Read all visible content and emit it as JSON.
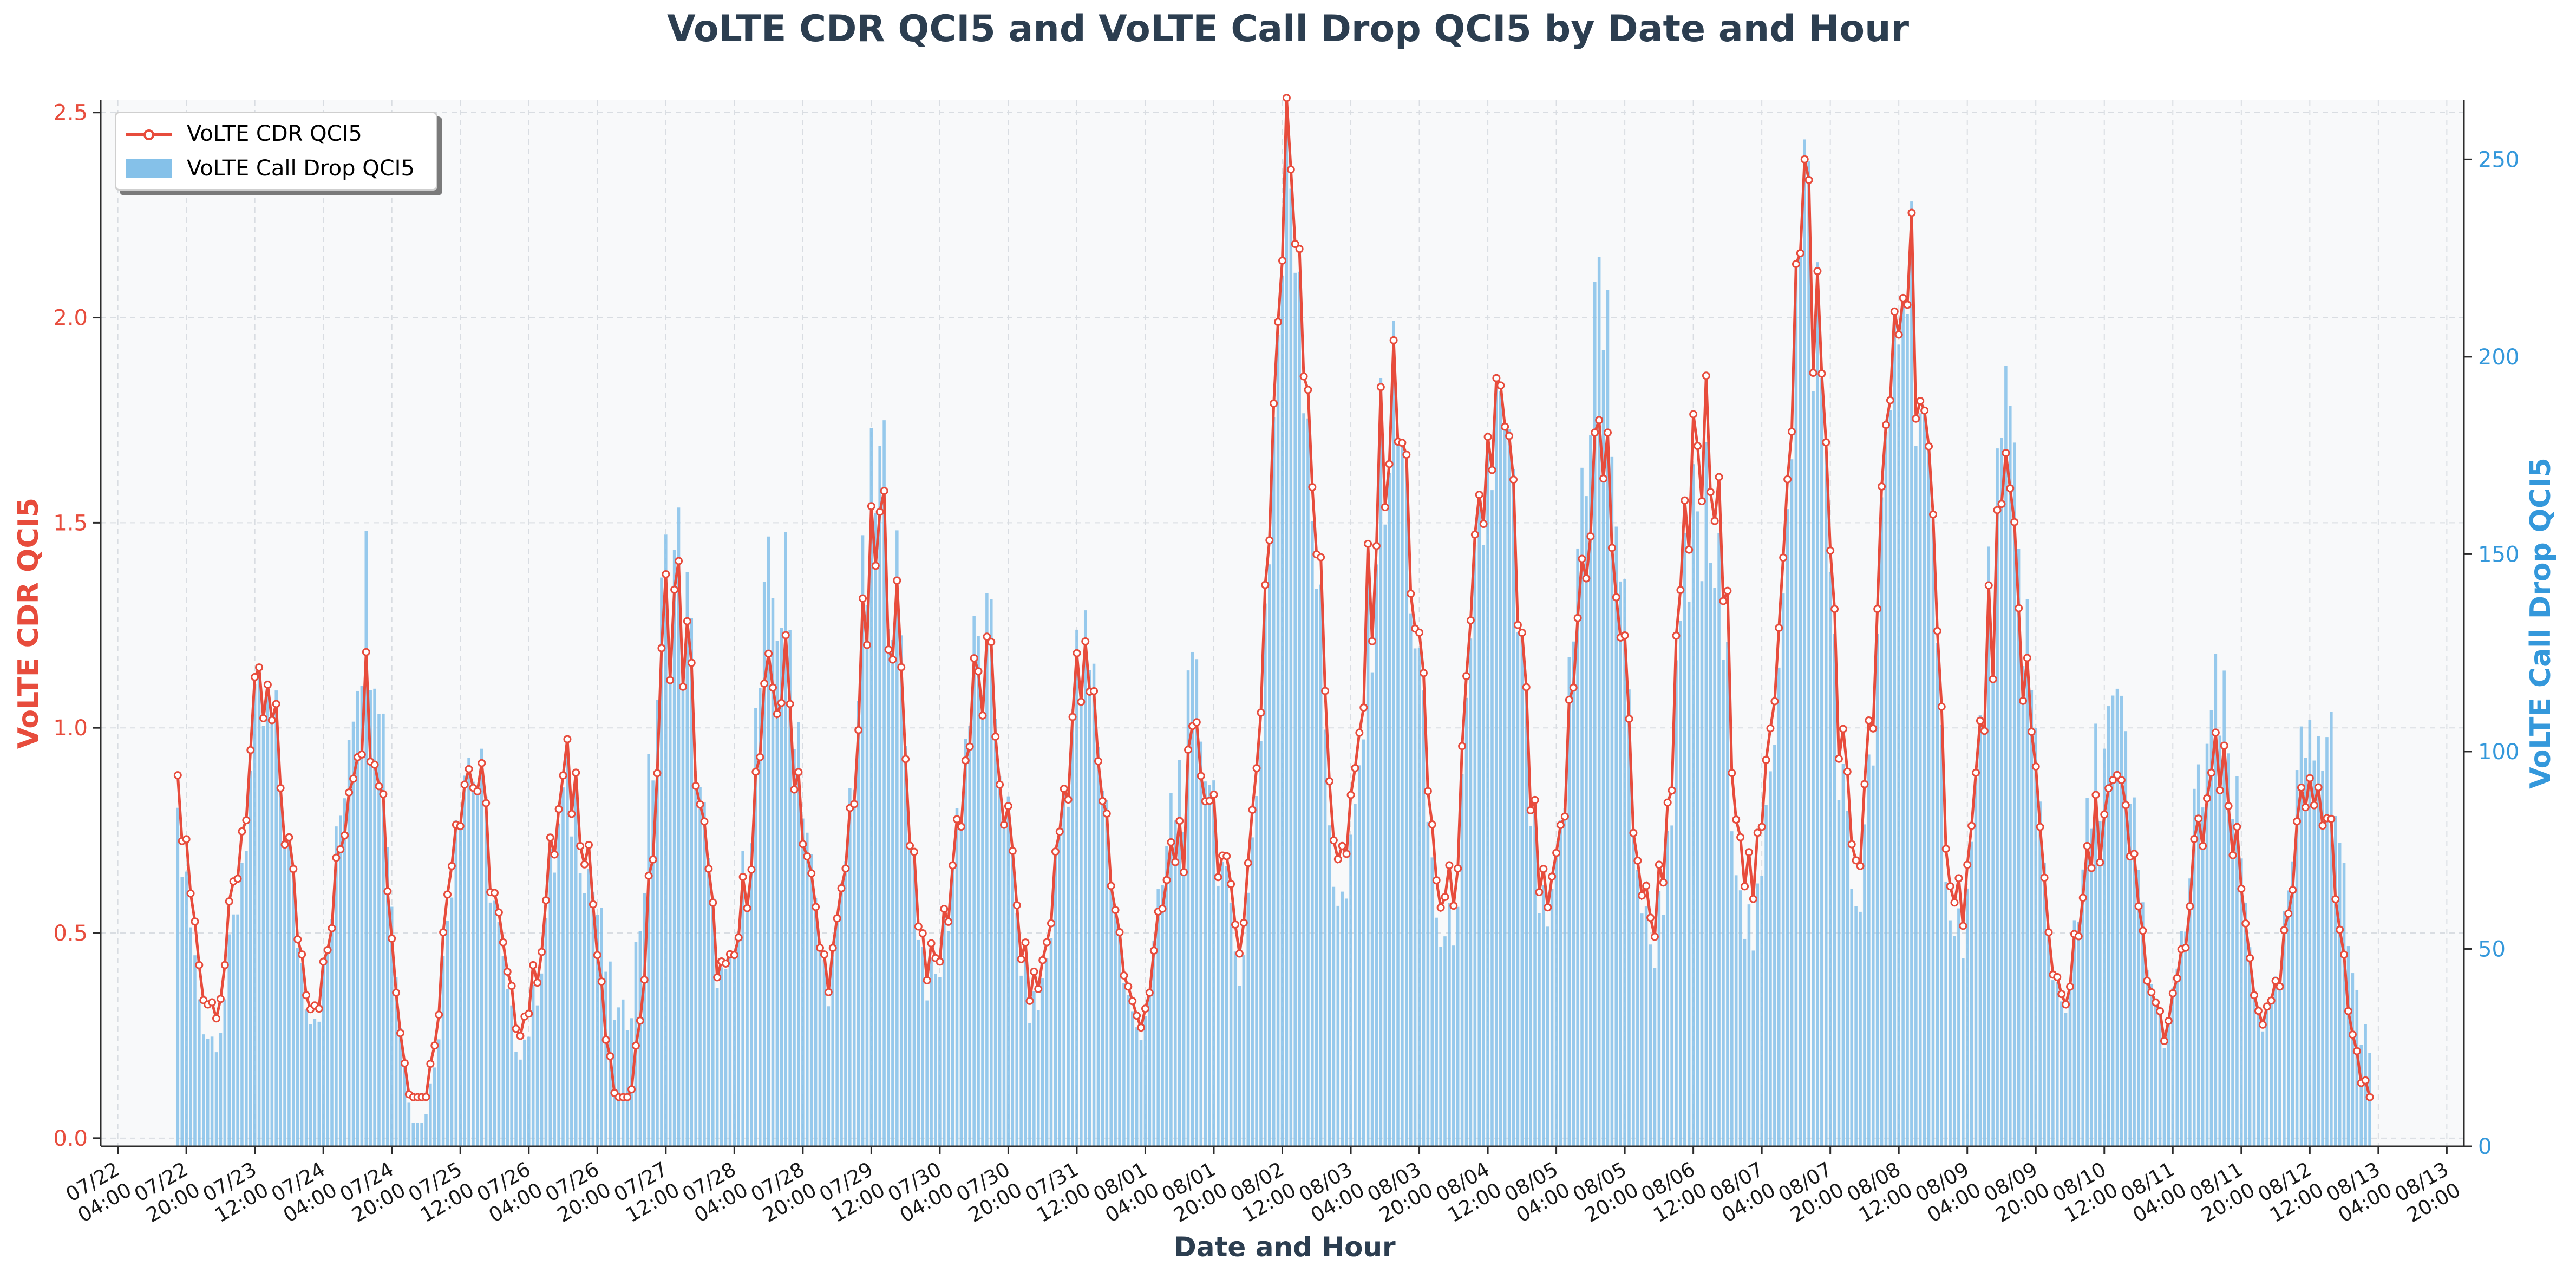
{
  "chart_data": {
    "type": "bar+line",
    "title": "VoLTE CDR QCI5 and VoLTE Call Drop QCI5 by Date and Hour",
    "xlabel": "Date and Hour",
    "y_left_label": "VoLTE CDR QCI5",
    "y_right_label": "VoLTE Call Drop QCI5",
    "y_left_ticks": [
      "0.0",
      "0.5",
      "1.0",
      "1.5",
      "2.0",
      "2.5"
    ],
    "y_right_ticks": [
      "0",
      "50",
      "100",
      "150",
      "200",
      "250"
    ],
    "y_left_range": [
      -0.02,
      2.53
    ],
    "y_right_range": [
      0,
      265
    ],
    "x_ticks": [
      [
        "07/22",
        "04:00"
      ],
      [
        "07/22",
        "20:00"
      ],
      [
        "07/23",
        "12:00"
      ],
      [
        "07/24",
        "04:00"
      ],
      [
        "07/24",
        "20:00"
      ],
      [
        "07/25",
        "12:00"
      ],
      [
        "07/26",
        "04:00"
      ],
      [
        "07/26",
        "20:00"
      ],
      [
        "07/27",
        "12:00"
      ],
      [
        "07/28",
        "04:00"
      ],
      [
        "07/28",
        "20:00"
      ],
      [
        "07/29",
        "12:00"
      ],
      [
        "07/30",
        "04:00"
      ],
      [
        "07/30",
        "20:00"
      ],
      [
        "07/31",
        "12:00"
      ],
      [
        "08/01",
        "04:00"
      ],
      [
        "08/01",
        "20:00"
      ],
      [
        "08/02",
        "12:00"
      ],
      [
        "08/03",
        "04:00"
      ],
      [
        "08/03",
        "20:00"
      ],
      [
        "08/04",
        "12:00"
      ],
      [
        "08/05",
        "04:00"
      ],
      [
        "08/05",
        "20:00"
      ],
      [
        "08/06",
        "12:00"
      ],
      [
        "08/07",
        "04:00"
      ],
      [
        "08/07",
        "20:00"
      ],
      [
        "08/08",
        "12:00"
      ],
      [
        "08/09",
        "04:00"
      ],
      [
        "08/09",
        "20:00"
      ],
      [
        "08/10",
        "12:00"
      ],
      [
        "08/11",
        "04:00"
      ],
      [
        "08/11",
        "20:00"
      ],
      [
        "08/12",
        "12:00"
      ],
      [
        "08/13",
        "04:00"
      ],
      [
        "08/13",
        "20:00"
      ]
    ],
    "x_range": [
      "07/22 00:00",
      "08/14 00:00"
    ],
    "grid": true,
    "legend_position": "top-left",
    "series": [
      {
        "name": "VoLTE CDR QCI5",
        "kind": "line",
        "color": "#e74c3c",
        "daily_points": [
          {
            "date": "07/23",
            "hour": "08:00",
            "value": 1.02
          },
          {
            "date": "07/24",
            "hour": "17:00",
            "value": 1.09
          },
          {
            "date": "07/25",
            "hour": "02:00",
            "value": 0.1
          },
          {
            "date": "07/25",
            "hour": "10:00",
            "value": 0.91
          },
          {
            "date": "07/26",
            "hour": "18:00",
            "value": 0.86
          },
          {
            "date": "07/27",
            "hour": "02:00",
            "value": 0.14
          },
          {
            "date": "07/27",
            "hour": "12:00",
            "value": 1.33
          },
          {
            "date": "07/28",
            "hour": "12:00",
            "value": 1.09
          },
          {
            "date": "07/29",
            "hour": "17:00",
            "value": 1.48
          },
          {
            "date": "07/30",
            "hour": "10:00",
            "value": 1.1
          },
          {
            "date": "07/31",
            "hour": "11:00",
            "value": 1.14
          },
          {
            "date": "08/01",
            "hour": "13:00",
            "value": 0.76
          },
          {
            "date": "08/02",
            "hour": "14:00",
            "value": 2.41
          },
          {
            "date": "08/03",
            "hour": "14:00",
            "value": 1.74
          },
          {
            "date": "08/04",
            "hour": "15:00",
            "value": 1.74
          },
          {
            "date": "08/05",
            "hour": "14:00",
            "value": 1.66
          },
          {
            "date": "08/06",
            "hour": "14:00",
            "value": 1.65
          },
          {
            "date": "08/07",
            "hour": "15:00",
            "value": 2.2
          },
          {
            "date": "08/08",
            "hour": "16:00",
            "value": 2.13
          },
          {
            "date": "08/09",
            "hour": "16:00",
            "value": 1.38
          },
          {
            "date": "08/10",
            "hour": "13:00",
            "value": 0.82
          },
          {
            "date": "08/11",
            "hour": "13:00",
            "value": 0.87
          },
          {
            "date": "08/12",
            "hour": "14:00",
            "value": 0.93
          },
          {
            "date": "08/13",
            "hour": "02:00",
            "value": 0.32
          }
        ]
      },
      {
        "name": "VoLTE Call Drop QCI5",
        "kind": "bar",
        "color": "#85c1e9",
        "daily_points": [
          {
            "date": "07/23",
            "hour": "08:00",
            "value": 102
          },
          {
            "date": "07/24",
            "hour": "17:00",
            "value": 148
          },
          {
            "date": "07/25",
            "hour": "02:00",
            "value": 8
          },
          {
            "date": "07/25",
            "hour": "11:00",
            "value": 103
          },
          {
            "date": "07/26",
            "hour": "18:00",
            "value": 88
          },
          {
            "date": "07/27",
            "hour": "12:00",
            "value": 152
          },
          {
            "date": "07/28",
            "hour": "13:00",
            "value": 143
          },
          {
            "date": "07/29",
            "hour": "17:00",
            "value": 173
          },
          {
            "date": "07/30",
            "hour": "10:00",
            "value": 128
          },
          {
            "date": "07/31",
            "hour": "11:00",
            "value": 127
          },
          {
            "date": "08/01",
            "hour": "13:00",
            "value": 99
          },
          {
            "date": "08/02",
            "hour": "14:00",
            "value": 255
          },
          {
            "date": "08/03",
            "hour": "14:00",
            "value": 188
          },
          {
            "date": "08/04",
            "hour": "15:00",
            "value": 184
          },
          {
            "date": "08/05",
            "hour": "14:00",
            "value": 217
          },
          {
            "date": "08/06",
            "hour": "14:00",
            "value": 158
          },
          {
            "date": "08/07",
            "hour": "15:00",
            "value": 238
          },
          {
            "date": "08/08",
            "hour": "16:00",
            "value": 229
          },
          {
            "date": "08/09",
            "hour": "16:00",
            "value": 167
          },
          {
            "date": "08/10",
            "hour": "13:00",
            "value": 109
          },
          {
            "date": "08/11",
            "hour": "13:00",
            "value": 110
          },
          {
            "date": "08/12",
            "hour": "14:00",
            "value": 118
          },
          {
            "date": "08/13",
            "hour": "02:00",
            "value": 92
          }
        ]
      }
    ]
  }
}
